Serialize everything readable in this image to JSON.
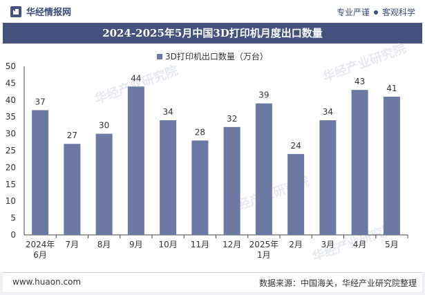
{
  "header": {
    "brand": "华经情报网",
    "tagline_left": "专业严谨",
    "tagline_right": "客观科学"
  },
  "title": "2024-2025年5月中国3D打印机月度出口数量",
  "footer": {
    "url": "www.huaon.com",
    "source": "数据来源：中国海关，华经产业研究院整理"
  },
  "watermark": "华经产业研究院",
  "colors": {
    "bar": "#6b79a3",
    "title_bg": "#44527f",
    "brand": "#3a4a7a"
  },
  "chart_data": {
    "type": "bar",
    "title": "2024-2025年5月中国3D打印机月度出口数量",
    "legend_position": "top-center",
    "grid": false,
    "categories": [
      [
        "2024年",
        "6月"
      ],
      [
        "7月"
      ],
      [
        "8月"
      ],
      [
        "9月"
      ],
      [
        "10月"
      ],
      [
        "11月"
      ],
      [
        "12月"
      ],
      [
        "2025年",
        "1月"
      ],
      [
        "2月"
      ],
      [
        "3月"
      ],
      [
        "4月"
      ],
      [
        "5月"
      ]
    ],
    "series": [
      {
        "name": "3D打印机出口数量（万台）",
        "values": [
          37,
          27,
          30,
          44,
          34,
          28,
          32,
          39,
          24,
          34,
          43,
          41
        ]
      }
    ],
    "yticks": [
      0,
      5,
      10,
      15,
      20,
      25,
      30,
      35,
      40,
      45,
      50
    ],
    "ylim": [
      0,
      50
    ],
    "data_labels": true
  }
}
